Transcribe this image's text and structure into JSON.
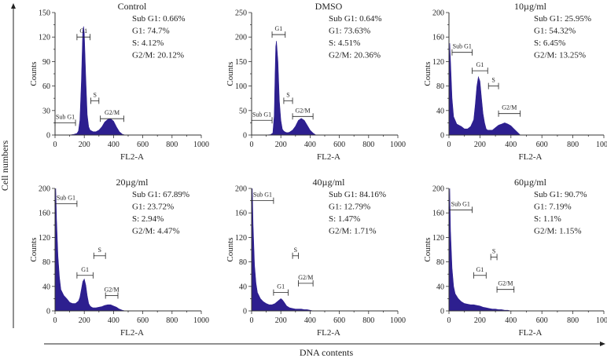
{
  "figure": {
    "y_axis_label": "Cell numbers",
    "x_axis_label": "DNA contents",
    "accent_color": "#2d1f8f"
  },
  "chart_data": [
    {
      "type": "area",
      "title": "Control",
      "xlabel": "FL2-A",
      "ylabel": "Counts",
      "xlim": [
        0,
        1000
      ],
      "ylim": [
        0,
        150
      ],
      "x_ticks": [
        "0",
        "200",
        "400",
        "600",
        "800",
        "1000"
      ],
      "x_minor_ticks": [
        "100",
        "300",
        "500",
        "700",
        "900"
      ],
      "y_ticks": [
        "0",
        "15",
        "30",
        "45",
        "60",
        "75",
        "90",
        "105",
        "120",
        "135",
        "150"
      ],
      "y_tick_labels": [
        "0",
        "30",
        "60",
        "90",
        "120",
        "150"
      ],
      "stats": [
        "Sub G1: 0.66%",
        "G1: 74.7%",
        "S: 4.12%",
        "G2/M: 20.12%"
      ],
      "gates": [
        {
          "label": "Sub G1",
          "x0": 0,
          "x1": 140,
          "y": 15
        },
        {
          "label": "G1",
          "x0": 150,
          "x1": 240,
          "y": 120
        },
        {
          "label": "S",
          "x0": 245,
          "x1": 300,
          "y": 42
        },
        {
          "label": "G2/M",
          "x0": 310,
          "x1": 470,
          "y": 20
        }
      ],
      "series": [
        {
          "name": "histogram",
          "x": [
            0,
            30,
            60,
            100,
            130,
            150,
            160,
            170,
            180,
            190,
            195,
            200,
            210,
            220,
            230,
            240,
            250,
            260,
            270,
            280,
            290,
            300,
            320,
            340,
            360,
            380,
            400,
            420,
            440,
            460,
            480,
            500,
            1000
          ],
          "y": [
            0,
            0,
            0,
            0,
            1,
            2,
            5,
            18,
            65,
            128,
            133,
            125,
            70,
            25,
            10,
            6,
            5,
            4,
            4,
            4,
            5,
            6,
            10,
            16,
            19,
            20,
            17,
            10,
            4,
            1,
            0,
            0,
            0
          ]
        }
      ]
    },
    {
      "type": "area",
      "title": "DMSO",
      "xlabel": "FL2-A",
      "ylabel": "Counts",
      "xlim": [
        0,
        1000
      ],
      "ylim": [
        0,
        250
      ],
      "x_ticks": [
        "0",
        "200",
        "400",
        "600",
        "800",
        "1000"
      ],
      "x_minor_ticks": [
        "100",
        "300",
        "500",
        "700",
        "900"
      ],
      "y_ticks": [
        "0",
        "25",
        "50",
        "75",
        "100",
        "125",
        "150",
        "175",
        "200",
        "225",
        "250"
      ],
      "y_tick_labels": [
        "0",
        "50",
        "100",
        "150",
        "200",
        "250"
      ],
      "stats": [
        "Sub G1: 0.64%",
        "G1: 73.63%",
        "S: 4.51%",
        "G2/M: 20.36%"
      ],
      "gates": [
        {
          "label": "Sub G1",
          "x0": 0,
          "x1": 140,
          "y": 30
        },
        {
          "label": "G1",
          "x0": 140,
          "x1": 230,
          "y": 205
        },
        {
          "label": "S",
          "x0": 220,
          "x1": 280,
          "y": 70
        },
        {
          "label": "G2/M",
          "x0": 280,
          "x1": 420,
          "y": 38
        }
      ],
      "series": [
        {
          "name": "histogram",
          "x": [
            0,
            100,
            130,
            145,
            155,
            160,
            165,
            170,
            180,
            190,
            200,
            210,
            220,
            230,
            240,
            250,
            260,
            270,
            280,
            300,
            320,
            340,
            360,
            380,
            400,
            420,
            440,
            1000
          ],
          "y": [
            0,
            0,
            1,
            4,
            40,
            120,
            180,
            192,
            150,
            70,
            30,
            12,
            8,
            6,
            5,
            5,
            6,
            8,
            10,
            18,
            30,
            34,
            30,
            20,
            10,
            4,
            0,
            0
          ]
        }
      ]
    },
    {
      "type": "area",
      "title": "10µg/ml",
      "xlabel": "FL2-A",
      "ylabel": "Counts",
      "xlim": [
        0,
        1000
      ],
      "ylim": [
        0,
        200
      ],
      "x_ticks": [
        "0",
        "200",
        "400",
        "600",
        "800",
        "1000"
      ],
      "x_minor_ticks": [
        "100",
        "300",
        "500",
        "700",
        "900"
      ],
      "y_ticks": [
        "0",
        "20",
        "40",
        "60",
        "80",
        "100",
        "120",
        "140",
        "160",
        "180",
        "200"
      ],
      "y_tick_labels": [
        "0",
        "40",
        "80",
        "120",
        "160",
        "200"
      ],
      "stats": [
        "Sub G1: 25.95%",
        "G1: 54.32%",
        "S: 6.45%",
        "G2/M: 13.25%"
      ],
      "gates": [
        {
          "label": "Sub G1",
          "x0": 20,
          "x1": 150,
          "y": 135
        },
        {
          "label": "G1",
          "x0": 150,
          "x1": 250,
          "y": 105
        },
        {
          "label": "S",
          "x0": 255,
          "x1": 320,
          "y": 80
        },
        {
          "label": "G2/M",
          "x0": 320,
          "x1": 460,
          "y": 35
        }
      ],
      "series": [
        {
          "name": "histogram",
          "x": [
            0,
            5,
            10,
            20,
            30,
            50,
            80,
            100,
            120,
            140,
            160,
            170,
            180,
            190,
            200,
            210,
            220,
            230,
            240,
            250,
            260,
            280,
            300,
            320,
            340,
            360,
            380,
            400,
            420,
            440,
            460,
            1000
          ],
          "y": [
            0,
            150,
            120,
            60,
            30,
            18,
            14,
            10,
            10,
            14,
            25,
            50,
            80,
            95,
            88,
            60,
            35,
            20,
            10,
            8,
            8,
            8,
            12,
            16,
            18,
            20,
            18,
            15,
            10,
            5,
            0,
            0
          ]
        }
      ]
    },
    {
      "type": "area",
      "title": "20µg/ml",
      "xlabel": "FL2-A",
      "ylabel": "Counts",
      "xlim": [
        0,
        1000
      ],
      "ylim": [
        0,
        200
      ],
      "x_ticks": [
        "0",
        "200",
        "400",
        "600",
        "800",
        "1000"
      ],
      "x_minor_ticks": [
        "100",
        "300",
        "500",
        "700",
        "900"
      ],
      "y_ticks": [
        "0",
        "20",
        "40",
        "60",
        "80",
        "100",
        "120",
        "140",
        "160",
        "180",
        "200"
      ],
      "y_tick_labels": [
        "0",
        "40",
        "80",
        "120",
        "160",
        "200"
      ],
      "stats": [
        "Sub G1: 67.89%",
        "G1: 23.72%",
        "S: 2.94%",
        "G2/M: 4.47%"
      ],
      "gates": [
        {
          "label": "Sub G1",
          "x0": 0,
          "x1": 150,
          "y": 175
        },
        {
          "label": "G1",
          "x0": 150,
          "x1": 260,
          "y": 58
        },
        {
          "label": "S",
          "x0": 265,
          "x1": 345,
          "y": 90
        },
        {
          "label": "G2/M",
          "x0": 345,
          "x1": 430,
          "y": 25
        }
      ],
      "series": [
        {
          "name": "histogram",
          "x": [
            0,
            5,
            10,
            20,
            30,
            40,
            60,
            80,
            100,
            120,
            140,
            160,
            170,
            180,
            190,
            200,
            210,
            220,
            230,
            240,
            250,
            260,
            280,
            300,
            320,
            340,
            360,
            380,
            400,
            420,
            440,
            460,
            480,
            1000
          ],
          "y": [
            0,
            200,
            150,
            90,
            55,
            35,
            25,
            20,
            14,
            12,
            12,
            16,
            22,
            35,
            48,
            52,
            42,
            25,
            12,
            8,
            6,
            5,
            5,
            6,
            7,
            9,
            10,
            10,
            8,
            6,
            3,
            1,
            0,
            0
          ]
        }
      ]
    },
    {
      "type": "area",
      "title": "40µg/ml",
      "xlabel": "FL2-A",
      "ylabel": "Counts",
      "xlim": [
        0,
        1000
      ],
      "ylim": [
        0,
        200
      ],
      "x_ticks": [
        "0",
        "200",
        "400",
        "600",
        "800",
        "1000"
      ],
      "x_minor_ticks": [
        "100",
        "300",
        "500",
        "700",
        "900"
      ],
      "y_ticks": [
        "0",
        "20",
        "40",
        "60",
        "80",
        "100",
        "120",
        "140",
        "160",
        "180",
        "200"
      ],
      "y_tick_labels": [
        "0",
        "40",
        "80",
        "120",
        "160",
        "200"
      ],
      "stats": [
        "Sub G1: 84.16%",
        "G1: 12.79%",
        "S: 1.47%",
        "G2/M: 1.71%"
      ],
      "gates": [
        {
          "label": "Sub G1",
          "x0": 0,
          "x1": 150,
          "y": 180
        },
        {
          "label": "G1",
          "x0": 150,
          "x1": 250,
          "y": 30
        },
        {
          "label": "S",
          "x0": 280,
          "x1": 320,
          "y": 90
        },
        {
          "label": "G2/M",
          "x0": 320,
          "x1": 420,
          "y": 45
        }
      ],
      "series": [
        {
          "name": "histogram",
          "x": [
            0,
            5,
            10,
            20,
            30,
            40,
            60,
            80,
            100,
            120,
            140,
            160,
            180,
            200,
            210,
            220,
            240,
            260,
            280,
            300,
            320,
            340,
            360,
            380,
            400,
            420,
            1000
          ],
          "y": [
            0,
            200,
            140,
            75,
            45,
            30,
            20,
            15,
            12,
            10,
            10,
            12,
            16,
            20,
            18,
            15,
            8,
            5,
            4,
            3,
            3,
            3,
            2,
            2,
            1,
            0,
            0
          ]
        }
      ]
    },
    {
      "type": "area",
      "title": "60µg/ml",
      "xlabel": "FL2-A",
      "ylabel": "Counts",
      "xlim": [
        0,
        1000
      ],
      "ylim": [
        0,
        200
      ],
      "x_ticks": [
        "0",
        "200",
        "400",
        "600",
        "800",
        "1000"
      ],
      "x_minor_ticks": [
        "100",
        "300",
        "500",
        "700",
        "900"
      ],
      "y_ticks": [
        "0",
        "20",
        "40",
        "60",
        "80",
        "100",
        "120",
        "140",
        "160",
        "180",
        "200"
      ],
      "y_tick_labels": [
        "0",
        "40",
        "80",
        "120",
        "160",
        "200"
      ],
      "stats": [
        "Sub G1: 90.7%",
        "G1: 7.19%",
        "S: 1.1%",
        "G2/M: 1.15%"
      ],
      "gates": [
        {
          "label": "Sub G1",
          "x0": 0,
          "x1": 150,
          "y": 165
        },
        {
          "label": "G1",
          "x0": 160,
          "x1": 240,
          "y": 58
        },
        {
          "label": "S",
          "x0": 270,
          "x1": 310,
          "y": 88
        },
        {
          "label": "G2/M",
          "x0": 310,
          "x1": 420,
          "y": 35
        }
      ],
      "series": [
        {
          "name": "histogram",
          "x": [
            0,
            5,
            10,
            20,
            30,
            40,
            60,
            80,
            100,
            120,
            140,
            160,
            180,
            200,
            220,
            240,
            260,
            280,
            300,
            320,
            340,
            360,
            380,
            400,
            1000
          ],
          "y": [
            0,
            200,
            130,
            70,
            40,
            28,
            20,
            15,
            12,
            11,
            10,
            10,
            9,
            8,
            6,
            5,
            4,
            3,
            3,
            2,
            2,
            1,
            1,
            0,
            0
          ]
        }
      ]
    }
  ]
}
